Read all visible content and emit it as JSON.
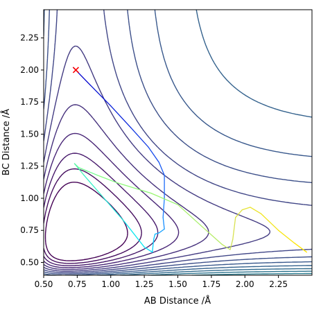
{
  "chart_data": {
    "type": "contour",
    "title": "",
    "xlabel": "AB Distance /Å",
    "ylabel": "BC Distance /Å",
    "xlim": [
      0.5,
      2.5
    ],
    "ylim": [
      0.4,
      2.47
    ],
    "xticks": [
      "0.50",
      "0.75",
      "1.00",
      "1.25",
      "1.50",
      "1.75",
      "2.00",
      "2.25"
    ],
    "xtick_values": [
      0.5,
      0.75,
      1.0,
      1.25,
      1.5,
      1.75,
      2.0,
      2.25
    ],
    "yticks": [
      "0.50",
      "0.75",
      "1.00",
      "1.25",
      "1.50",
      "1.75",
      "2.00",
      "2.25"
    ],
    "ytick_values": [
      0.5,
      0.75,
      1.0,
      1.25,
      1.5,
      1.75,
      2.0,
      2.25
    ],
    "colormap": "viridis",
    "grid": false,
    "contour_levels": 30,
    "start_marker": {
      "x": 0.74,
      "y": 2.0,
      "color": "#ff0000",
      "symbol": "x"
    },
    "trajectory_colors": [
      "#0000cc",
      "#1f77ff",
      "#00e5ff",
      "#7fff7f",
      "#d4e157",
      "#ffe600"
    ],
    "trajectory": [
      [
        0.72,
        2.02
      ],
      [
        0.85,
        1.88
      ],
      [
        1.0,
        1.72
      ],
      [
        1.15,
        1.55
      ],
      [
        1.28,
        1.4
      ],
      [
        1.36,
        1.28
      ],
      [
        1.4,
        1.18
      ],
      [
        1.4,
        1.0
      ],
      [
        1.39,
        0.85
      ],
      [
        1.4,
        0.76
      ],
      [
        1.36,
        0.73
      ],
      [
        1.33,
        0.72
      ],
      [
        1.32,
        0.68
      ],
      [
        1.31,
        0.58
      ],
      [
        1.25,
        0.62
      ],
      [
        1.1,
        0.82
      ],
      [
        0.95,
        1.0
      ],
      [
        0.8,
        1.18
      ],
      [
        0.73,
        1.27
      ],
      [
        0.76,
        1.24
      ],
      [
        0.9,
        1.18
      ],
      [
        1.05,
        1.12
      ],
      [
        1.3,
        1.04
      ],
      [
        1.5,
        0.95
      ],
      [
        1.68,
        0.78
      ],
      [
        1.83,
        0.64
      ],
      [
        1.89,
        0.6
      ],
      [
        1.91,
        0.68
      ],
      [
        1.93,
        0.85
      ],
      [
        1.98,
        0.91
      ],
      [
        2.04,
        0.93
      ],
      [
        2.12,
        0.88
      ],
      [
        2.25,
        0.75
      ],
      [
        2.37,
        0.65
      ],
      [
        2.46,
        0.58
      ]
    ]
  }
}
